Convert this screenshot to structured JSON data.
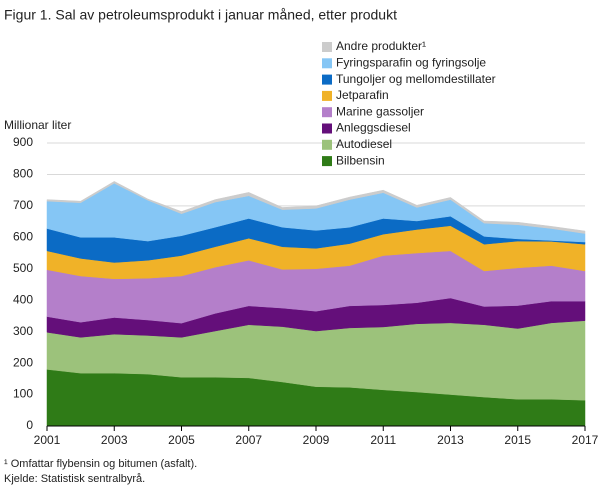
{
  "chart_data": {
    "type": "stacked_area",
    "title": "Figur 1. Sal av petroleumsprodukt i januar måned, etter produkt",
    "y_label": "Millionar liter",
    "footnote": "¹ Omfattar flybensin og bitumen (asfalt).",
    "source": "Kjelde: Statistisk sentralbyrå.",
    "x": [
      2001,
      2002,
      2003,
      2004,
      2005,
      2006,
      2007,
      2008,
      2009,
      2010,
      2011,
      2012,
      2013,
      2014,
      2015,
      2016,
      2017
    ],
    "xlim": [
      2001,
      2017
    ],
    "xticks": [
      2001,
      2003,
      2005,
      2007,
      2009,
      2011,
      2013,
      2015,
      2017
    ],
    "ylim": [
      0,
      900
    ],
    "yticks": [
      0,
      100,
      200,
      300,
      400,
      500,
      600,
      700,
      800,
      900
    ],
    "grid": true,
    "series": [
      {
        "name": "Bilbensin",
        "color": "#2f7b17",
        "values": [
          180,
          168,
          168,
          165,
          155,
          155,
          153,
          140,
          125,
          123,
          115,
          108,
          100,
          92,
          85,
          85,
          82
        ]
      },
      {
        "name": "Autodiesel",
        "color": "#9cc27b",
        "values": [
          118,
          114,
          124,
          123,
          127,
          147,
          169,
          176,
          177,
          189,
          200,
          217,
          228,
          230,
          225,
          243,
          253
        ]
      },
      {
        "name": "Anleggsdiesel",
        "color": "#640f7a",
        "values": [
          50,
          48,
          53,
          49,
          45,
          56,
          60,
          59,
          63,
          70,
          70,
          67,
          79,
          58,
          73,
          69,
          62
        ]
      },
      {
        "name": "Marine gassoljer",
        "color": "#b47fca",
        "values": [
          149,
          147,
          123,
          133,
          150,
          147,
          145,
          123,
          135,
          128,
          157,
          158,
          150,
          113,
          120,
          113,
          96
        ]
      },
      {
        "name": "Jetparafin",
        "color": "#f0b228",
        "values": [
          60,
          56,
          52,
          57,
          65,
          65,
          70,
          72,
          65,
          70,
          68,
          75,
          80,
          85,
          85,
          77,
          85
        ]
      },
      {
        "name": "Tungoljer og mellomdestillater",
        "color": "#0b6bc5",
        "values": [
          71,
          67,
          80,
          61,
          63,
          62,
          63,
          62,
          57,
          52,
          50,
          27,
          30,
          25,
          7,
          3,
          7
        ]
      },
      {
        "name": "Fyringsparafin og fyringsolje",
        "color": "#85c6f5",
        "values": [
          87,
          110,
          172,
          130,
          70,
          80,
          72,
          56,
          70,
          88,
          82,
          43,
          53,
          42,
          45,
          38,
          27
        ]
      },
      {
        "name": "Andre produkter¹",
        "color": "#cccccc",
        "values": [
          5,
          5,
          6,
          4,
          7,
          8,
          11,
          7,
          8,
          8,
          8,
          7,
          7,
          7,
          8,
          7,
          8
        ]
      }
    ]
  }
}
